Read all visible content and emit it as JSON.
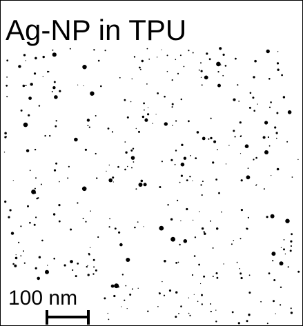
{
  "title": "Ag-NP in TPU",
  "scale_bar": {
    "label": "100 nm"
  }
}
